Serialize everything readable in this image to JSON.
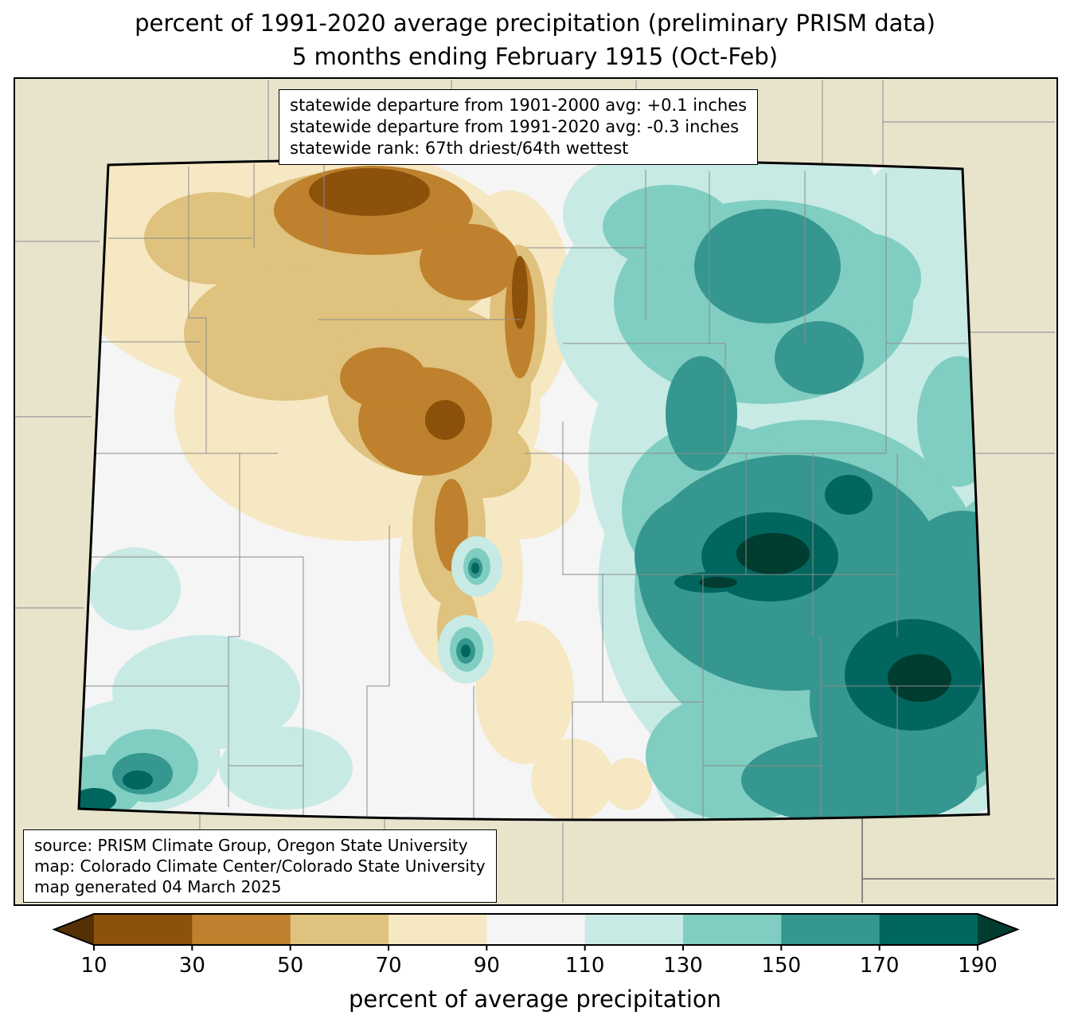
{
  "chart_data": {
    "type": "heatmap",
    "title": "percent of 1991-2020 average precipitation (preliminary PRISM data)",
    "subtitle": "5 months ending February 1915 (Oct-Feb)",
    "region": "Colorado",
    "legend_position": "bottom",
    "colorbar": {
      "label": "percent of average precipitation",
      "ticks": [
        10,
        30,
        50,
        70,
        90,
        110,
        130,
        150,
        170,
        190
      ],
      "segment_colors": [
        "#8c510a",
        "#bf812d",
        "#dfc27d",
        "#f6e8c3",
        "#f5f5f5",
        "#c7eae5",
        "#80cdc1",
        "#35978f",
        "#01665e"
      ],
      "under_arrow_color": "#543005",
      "over_arrow_color": "#003c30"
    },
    "map_colors": {
      "outside_background": "#e8e4cc",
      "state_border": "#000000",
      "county_line": "#8c8c8c"
    }
  },
  "stats_box": {
    "lines": [
      "statewide departure from 1901-2000 avg: +0.1 inches",
      "statewide departure from 1991-2020 avg: -0.3 inches",
      "statewide rank: 67th driest/64th wettest"
    ]
  },
  "source_box": {
    "lines": [
      "source: PRISM Climate Group, Oregon State University",
      "map: Colorado Climate Center/Colorado State University",
      "map generated 04 March 2025"
    ]
  }
}
